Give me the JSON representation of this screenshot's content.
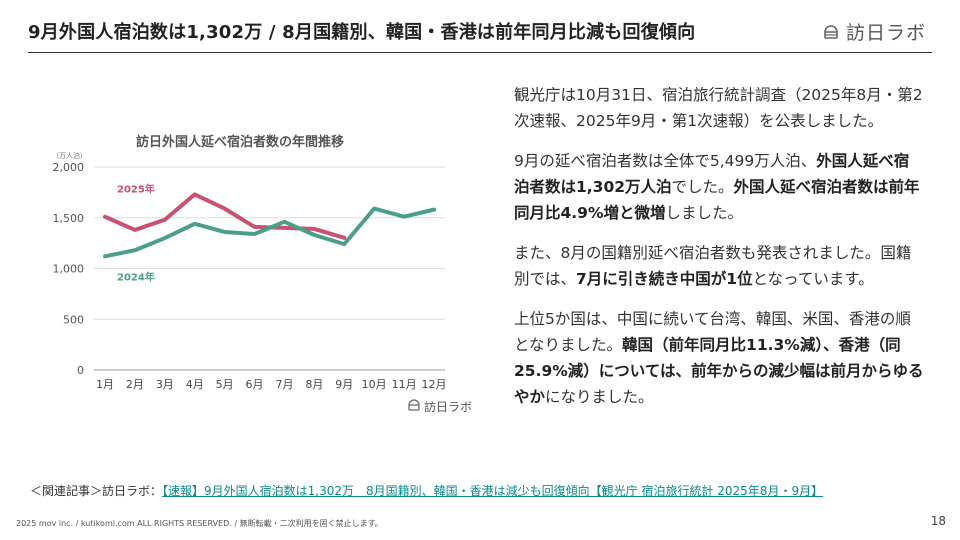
{
  "header": {
    "title": "9月外国人宿泊数は1,302万 / 8月国籍別、韓国・香港は前年同月比減も回復傾向",
    "brand_icon": "brand-logo-icon",
    "brand_text": "訪日ラボ"
  },
  "chart_data": {
    "type": "line",
    "title": "訪日外国人延べ宿泊者数の年間推移",
    "unit_label": "（万人泊）",
    "categories": [
      "1月",
      "2月",
      "3月",
      "4月",
      "5月",
      "6月",
      "7月",
      "8月",
      "9月",
      "10月",
      "11月",
      "12月"
    ],
    "series": [
      {
        "name": "2025年",
        "color": "#c9506e",
        "values": [
          1510,
          1380,
          1480,
          1730,
          1590,
          1410,
          1400,
          1390,
          1302,
          null,
          null,
          null
        ]
      },
      {
        "name": "2024年",
        "color": "#4a9e8a",
        "values": [
          1120,
          1180,
          1300,
          1440,
          1360,
          1340,
          1460,
          1330,
          1240,
          1590,
          1510,
          1580
        ]
      }
    ],
    "yticks": [
      "0",
      "500",
      "1,000",
      "1,500",
      "2,000"
    ],
    "ylim": [
      0,
      2000
    ],
    "grid": true,
    "source_label": "訪日ラボ"
  },
  "body": {
    "p1": {
      "t1": "観光庁は10月31日、宿泊旅行統計調査（2025年8月・第2次速報、2025年9月・第1次速報）を公表しました。"
    },
    "p2": {
      "t1": "9月の延べ宿泊者数は全体で5,499万人泊、",
      "b1": "外国人延べ宿泊者数は1,302万人泊",
      "t2": "でした。",
      "b2": "外国人延べ宿泊者数は前年同月比4.9%増と微増",
      "t3": "しました。"
    },
    "p3": {
      "t1": "また、8月の国籍別延べ宿泊者数も発表されました。国籍別では、",
      "b1": "7月に引き続き中国が1位",
      "t2": "となっています。"
    },
    "p4": {
      "t1": "上位5か国は、中国に続いて台湾、韓国、米国、香港の順となりました。",
      "b1": "韓国（前年同月比11.3%減）、香港（同25.9%減）については、前年からの減少幅は前月からゆるやか",
      "t2": "になりました。"
    }
  },
  "footer": {
    "related_prefix": "＜関連記事＞訪日ラボ：",
    "related_link": "【速報】9月外国人宿泊数は1,302万　8月国籍別、韓国・香港は減少も回復傾向【観光庁 宿泊旅行統計 2025年8月・9月】",
    "copyright": "2025 mov inc. / kutikomi.com ALL RIGHTS RESERVED. / 無断転載・二次利用を固く禁止します。",
    "page_number": "18"
  }
}
